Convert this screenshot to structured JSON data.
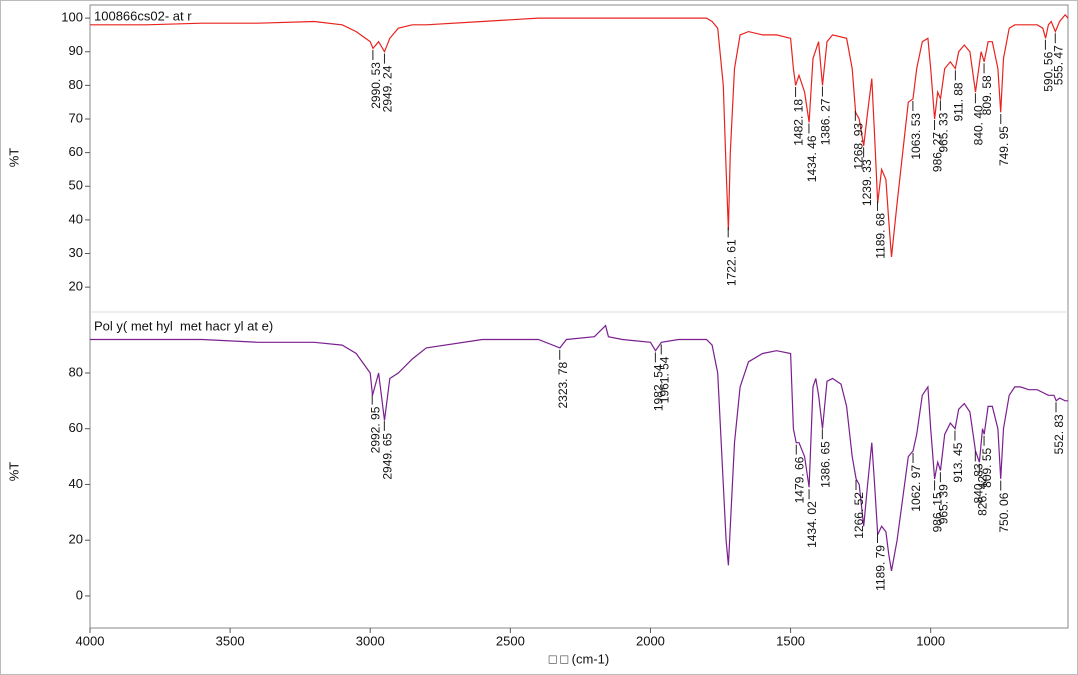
{
  "chart_data": [
    {
      "type": "line",
      "title": "100866cs02- at r",
      "ylabel": "%T",
      "xlim": [
        4000,
        510
      ],
      "ylim": [
        13.2,
        103.9
      ],
      "yticks": [
        20,
        30,
        40,
        50,
        60,
        70,
        80,
        90,
        100
      ],
      "x": [
        4000,
        3800,
        3600,
        3400,
        3200,
        3100,
        3050,
        3000,
        2990,
        2970,
        2949,
        2930,
        2900,
        2850,
        2800,
        2600,
        2400,
        2200,
        2000,
        1900,
        1800,
        1780,
        1760,
        1740,
        1730,
        1722,
        1715,
        1700,
        1680,
        1650,
        1600,
        1550,
        1500,
        1490,
        1482,
        1470,
        1450,
        1434,
        1420,
        1400,
        1386,
        1370,
        1350,
        1300,
        1280,
        1268,
        1255,
        1239,
        1225,
        1210,
        1200,
        1189,
        1175,
        1160,
        1150,
        1140,
        1120,
        1100,
        1080,
        1063,
        1050,
        1030,
        1010,
        1000,
        986,
        975,
        965,
        950,
        930,
        912,
        900,
        880,
        860,
        840,
        830,
        820,
        809,
        795,
        780,
        760,
        750,
        740,
        720,
        700,
        680,
        650,
        620,
        600,
        590,
        580,
        570,
        555,
        540,
        520,
        510
      ],
      "series": [
        {
          "color": "#e8231f",
          "values": [
            98,
            98,
            98.5,
            98.5,
            99,
            98,
            96,
            93,
            91,
            93,
            90,
            94,
            97,
            98,
            98,
            99,
            100,
            100,
            100,
            100,
            100,
            99,
            97,
            80,
            55,
            37,
            60,
            85,
            95,
            96,
            95,
            95,
            94,
            85,
            80,
            83,
            78,
            69,
            88,
            93,
            80,
            93,
            95,
            94,
            85,
            72,
            70,
            62,
            72,
            82,
            65,
            45,
            55,
            52,
            40,
            29,
            45,
            60,
            75,
            76,
            85,
            93,
            94,
            85,
            70,
            78,
            76,
            85,
            87,
            85,
            90,
            92,
            90,
            78,
            84,
            90,
            87,
            93,
            93,
            85,
            72,
            88,
            97,
            98,
            98,
            98,
            98,
            97,
            94,
            98,
            99,
            96,
            99,
            101,
            100
          ]
        }
      ],
      "annotations": [
        {
          "x": 2990.53,
          "label": "2990. 53"
        },
        {
          "x": 2949.24,
          "label": "2949. 24"
        },
        {
          "x": 1722.61,
          "label": "1722. 61"
        },
        {
          "x": 1482.18,
          "label": "1482. 18"
        },
        {
          "x": 1434.46,
          "label": "1434. 46"
        },
        {
          "x": 1386.27,
          "label": "1386. 27"
        },
        {
          "x": 1268.93,
          "label": "1268. 93"
        },
        {
          "x": 1239.33,
          "label": "1239. 33"
        },
        {
          "x": 1189.68,
          "label": "1189. 68"
        },
        {
          "x": 1063.53,
          "label": "1063. 53"
        },
        {
          "x": 986.27,
          "label": "986. 27"
        },
        {
          "x": 965.33,
          "label": "965. 33"
        },
        {
          "x": 911.88,
          "label": "911. 88"
        },
        {
          "x": 840.4,
          "label": "840. 40"
        },
        {
          "x": 809.58,
          "label": "809. 58"
        },
        {
          "x": 749.95,
          "label": "749. 95"
        },
        {
          "x": 590.56,
          "label": "590. 56"
        },
        {
          "x": 555.47,
          "label": "555. 47"
        }
      ]
    },
    {
      "type": "line",
      "title": "Pol y( met hyl  met hacr yl at e)",
      "ylabel": "%T",
      "xlabel": "□ □ (cm-1)",
      "xlim": [
        4000,
        510
      ],
      "ylim": [
        -11.5,
        100.8
      ],
      "yticks": [
        0,
        20,
        40,
        60,
        80
      ],
      "xticks": [
        4000,
        3500,
        3000,
        2500,
        2000,
        1500,
        1000
      ],
      "x": [
        4000,
        3800,
        3600,
        3400,
        3200,
        3100,
        3050,
        3000,
        2992,
        2970,
        2949,
        2930,
        2900,
        2850,
        2800,
        2600,
        2400,
        2323,
        2300,
        2200,
        2160,
        2150,
        2100,
        2000,
        1982,
        1961,
        1900,
        1800,
        1780,
        1760,
        1740,
        1730,
        1722,
        1715,
        1700,
        1680,
        1650,
        1600,
        1550,
        1500,
        1490,
        1480,
        1470,
        1450,
        1434,
        1420,
        1410,
        1400,
        1386,
        1370,
        1350,
        1320,
        1300,
        1280,
        1266,
        1255,
        1239,
        1225,
        1210,
        1200,
        1189,
        1175,
        1160,
        1150,
        1140,
        1120,
        1100,
        1080,
        1063,
        1050,
        1030,
        1010,
        1000,
        986,
        975,
        965,
        950,
        930,
        913,
        900,
        880,
        860,
        840,
        826,
        815,
        809,
        795,
        780,
        760,
        750,
        740,
        720,
        700,
        680,
        650,
        620,
        600,
        580,
        560,
        552,
        540,
        520,
        510
      ],
      "series": [
        {
          "color": "#7a1f8f",
          "values": [
            92,
            92,
            92,
            91,
            91,
            90,
            87,
            80,
            72,
            80,
            63,
            78,
            80,
            85,
            89,
            92,
            92,
            89,
            92,
            93,
            97,
            93,
            92,
            91,
            88,
            91,
            92,
            92,
            90,
            80,
            40,
            20,
            11,
            25,
            55,
            75,
            84,
            87,
            88,
            87,
            60,
            55,
            55,
            50,
            39,
            75,
            78,
            72,
            60,
            77,
            78,
            76,
            68,
            50,
            42,
            40,
            25,
            40,
            55,
            40,
            22,
            25,
            23,
            15,
            9,
            20,
            35,
            50,
            52,
            58,
            72,
            75,
            60,
            42,
            48,
            45,
            58,
            62,
            60,
            67,
            69,
            66,
            52,
            48,
            60,
            58,
            68,
            68,
            60,
            42,
            60,
            72,
            75,
            75,
            74,
            74,
            73,
            72,
            72,
            70,
            71,
            70,
            70
          ]
        }
      ],
      "annotations": [
        {
          "x": 2992.95,
          "label": "2992. 95"
        },
        {
          "x": 2949.65,
          "label": "2949. 65"
        },
        {
          "x": 2323.78,
          "label": "2323. 78"
        },
        {
          "x": 1982.54,
          "label": "1982. 54"
        },
        {
          "x": 1961.54,
          "label": "1961. 54"
        },
        {
          "x": 1479.66,
          "label": "1479. 66"
        },
        {
          "x": 1434.02,
          "label": "1434. 02"
        },
        {
          "x": 1386.65,
          "label": "1386. 65"
        },
        {
          "x": 1266.52,
          "label": "1266. 52"
        },
        {
          "x": 1189.79,
          "label": "1189. 79"
        },
        {
          "x": 1062.97,
          "label": "1062. 97"
        },
        {
          "x": 986.15,
          "label": "986. 15"
        },
        {
          "x": 965.39,
          "label": "965. 39"
        },
        {
          "x": 913.45,
          "label": "913. 45"
        },
        {
          "x": 840.83,
          "label": "840. 83"
        },
        {
          "x": 826.42,
          "label": "826. 42"
        },
        {
          "x": 809.55,
          "label": "809. 55"
        },
        {
          "x": 750.06,
          "label": "750. 06"
        },
        {
          "x": 552.83,
          "label": "552. 83"
        }
      ]
    }
  ]
}
